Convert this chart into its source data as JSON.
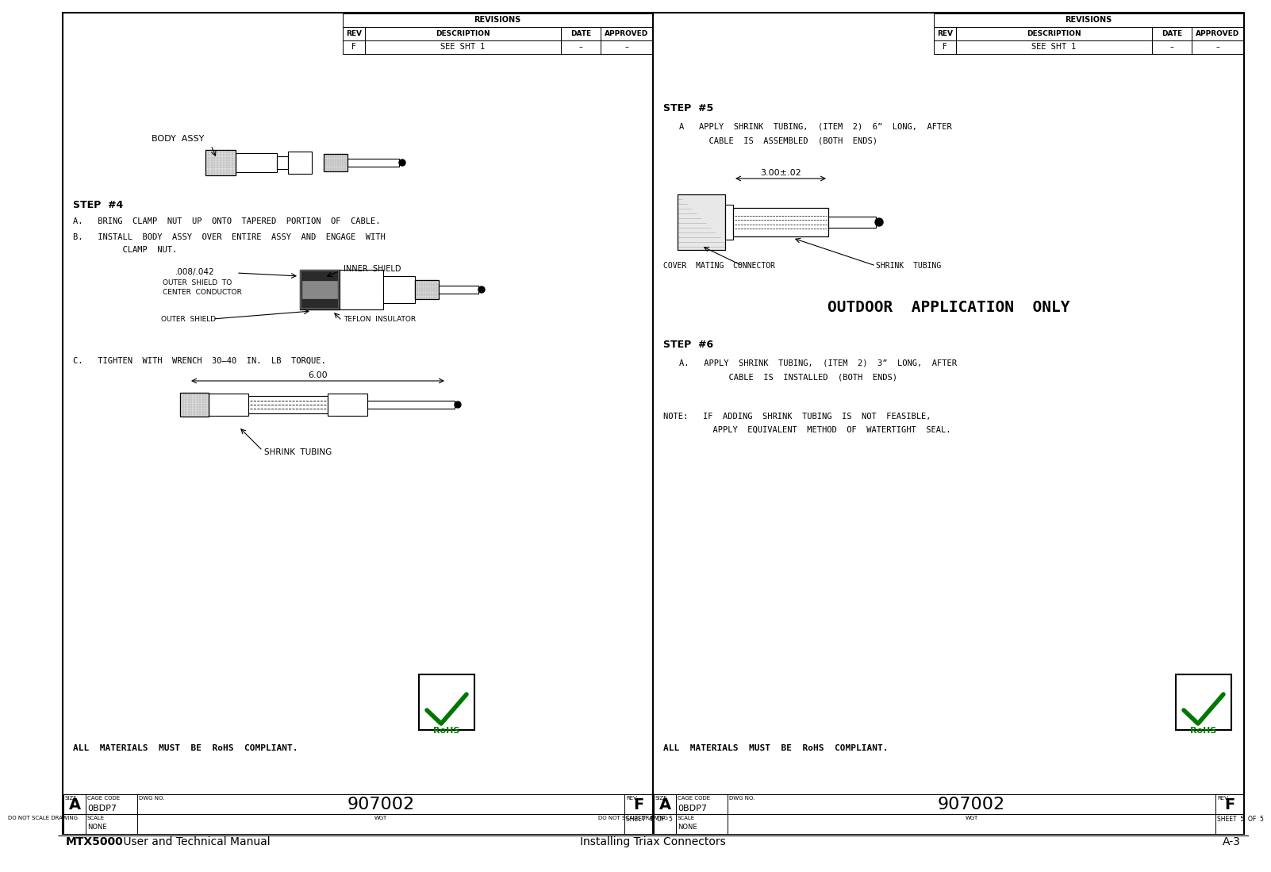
{
  "page_bg": "#ffffff",
  "title_left_bold": "MTX5000",
  "title_left_normal": " User and Technical Manual",
  "title_center": "Installing Triax Connectors",
  "title_right": "A-3",
  "left_panel": {
    "rev_row": [
      "F",
      "SEE  SHT  1",
      "–",
      "–"
    ],
    "body_assy_label": "BODY  ASSY",
    "step4_title": "STEP  #4",
    "step4_a": "A.   BRING  CLAMP  NUT  UP  ONTO  TAPERED  PORTION  OF  CABLE.",
    "step4_b1": "B.   INSTALL  BODY  ASSY  OVER  ENTIRE  ASSY  AND  ENGAGE  WITH",
    "step4_b2": "          CLAMP  NUT.",
    "dim_outer": ".008/.042",
    "outer_shield_to": "OUTER  SHIELD  TO",
    "center_cond": "CENTER  CONDUCTOR",
    "inner_shield": "INNER  SHIELD",
    "outer_shield": "OUTER  SHIELD",
    "teflon": "TEFLON  INSULATOR",
    "step4_c": "C.   TIGHTEN  WITH  WRENCH  30–40  IN.  LB  TORQUE.",
    "dim_6": "6.00",
    "shrink_tubing": "SHRINK  TUBING",
    "rohs_compliant": "ALL  MATERIALS  MUST  BE  RoHS  COMPLIANT.",
    "sheet": "SHEET  4  OF  5"
  },
  "right_panel": {
    "rev_row": [
      "F",
      "SEE  SHT  1",
      "–",
      "–"
    ],
    "step5_title": "STEP  #5",
    "step5_a1": "A   APPLY  SHRINK  TUBING,  (ITEM  2)  6”  LONG,  AFTER",
    "step5_a2": "      CABLE  IS  ASSEMBLED  (BOTH  ENDS)",
    "dim_3": "3.00±.02",
    "cover_label": "COVER  MATING  CONNECTOR",
    "shrink_label": "SHRINK  TUBING",
    "outdoor": "OUTDOOR  APPLICATION  ONLY",
    "step6_title": "STEP  #6",
    "step6_a1": "A.   APPLY  SHRINK  TUBING,  (ITEM  2)  3”  LONG,  AFTER",
    "step6_a2": "          CABLE  IS  INSTALLED  (BOTH  ENDS)",
    "note1": "NOTE:   IF  ADDING  SHRINK  TUBING  IS  NOT  FEASIBLE,",
    "note2": "          APPLY  EQUIVALENT  METHOD  OF  WATERTIGHT  SEAL.",
    "rohs_compliant": "ALL  MATERIALS  MUST  BE  RoHS  COMPLIANT.",
    "sheet": "SHEET  5  OF  5"
  },
  "common": {
    "cage_code": "0BDP7",
    "dwg_no": "907002",
    "rev": "F",
    "size": "A"
  }
}
